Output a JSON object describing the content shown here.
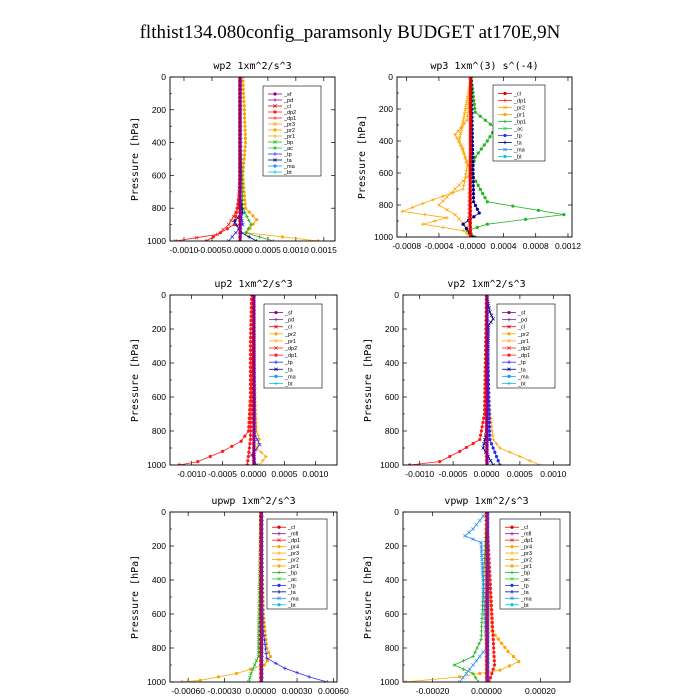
{
  "title": "flthist134.080config_paramsonly  BUDGET at170E,9N",
  "ylabel": "Pressure [hPa]",
  "colors": {
    "_sf": "#8b008b",
    "_pd": "#7b1fa2",
    "_mfl": "#7b1fa2",
    "_cl": "#e00000",
    "_dp": "#ff1a1a",
    "_pr": "#ffa500",
    "_bp": "#22b422",
    "_ac": "#32cd32",
    "_tp": "#2a2aff",
    "_ta": "#00008b",
    "_ma": "#1e90ff",
    "_bt": "#00c8d8"
  },
  "chart_data": [
    {
      "name": "wp2",
      "type": "line",
      "title": "wp2  1xm^2/s^3",
      "ylabel": "Pressure [hPa]",
      "ylim": [
        1000,
        0
      ],
      "yticks": [
        "0",
        "200",
        "400",
        "600",
        "800",
        "1000"
      ],
      "xlim": [
        -0.00125,
        0.0017
      ],
      "xticks": [
        {
          "v": -0.001,
          "t": "-0.0010"
        },
        {
          "v": -0.0005,
          "t": "-0.0005"
        },
        {
          "v": 0.0,
          "t": "0.0000"
        },
        {
          "v": 0.0005,
          "t": "0.0005"
        },
        {
          "v": 0.001,
          "t": "0.0010"
        },
        {
          "v": 0.0015,
          "t": "0.0015"
        }
      ],
      "legend": [
        "_sf",
        "_pd",
        "_cl",
        "_dp2",
        "_dp1",
        "_pr3",
        "_pr2",
        "_pr1",
        "_bp",
        "_ac",
        "_tp",
        "_ta",
        "_ma",
        "_bt"
      ],
      "series": [
        {
          "name": "_pr1",
          "y": [
            0,
            200,
            400,
            600,
            800,
            870,
            950,
            1000
          ],
          "x": [
            5e-05,
            8e-05,
            0.0001,
            5e-05,
            0.0001,
            0.0003,
            0.00012,
            0.0014
          ]
        },
        {
          "name": "_bp",
          "y": [
            0,
            300,
            500,
            800,
            900,
            950,
            1000
          ],
          "x": [
            0,
            0,
            3e-05,
            5e-05,
            0.0002,
            0.0001,
            0.0006
          ]
        },
        {
          "name": "_dp1",
          "y": [
            0,
            600,
            800,
            900,
            960,
            1000
          ],
          "x": [
            0,
            0,
            -3e-05,
            -0.0002,
            -0.0004,
            -0.00115
          ]
        },
        {
          "name": "_dp2",
          "y": [
            0,
            700,
            900,
            1000
          ],
          "x": [
            0,
            0,
            -0.0001,
            -0.0006
          ]
        },
        {
          "name": "_ta",
          "y": [
            0,
            700,
            830,
            880,
            950,
            1000
          ],
          "x": [
            0,
            0,
            5e-05,
            -0.0001,
            3e-05,
            0.0003
          ]
        },
        {
          "name": "_tp",
          "y": [
            0,
            800,
            900,
            1000
          ],
          "x": [
            0,
            0,
            5e-05,
            -0.0002
          ]
        },
        {
          "name": "_cl",
          "y": [
            0,
            1000
          ],
          "x": [
            0,
            0
          ]
        },
        {
          "name": "_sf",
          "y": [
            0,
            1000
          ],
          "x": [
            1e-05,
            1e-05
          ]
        }
      ]
    },
    {
      "name": "wp3",
      "type": "line",
      "title": "wp3  1xm^(3) s^(-4)",
      "ylabel": "Pressure [hPa]",
      "ylim": [
        1000,
        0
      ],
      "yticks": [
        "0",
        "200",
        "400",
        "600",
        "800",
        "1000"
      ],
      "xlim": [
        -0.00092,
        0.00125
      ],
      "xticks": [
        {
          "v": -0.0008,
          "t": "-0.0008"
        },
        {
          "v": -0.0004,
          "t": "-0.0004"
        },
        {
          "v": 0.0,
          "t": "-0.0000"
        },
        {
          "v": 0.0004,
          "t": "0.0004"
        },
        {
          "v": 0.0008,
          "t": "0.0008"
        },
        {
          "v": 0.0012,
          "t": "0.0012"
        }
      ],
      "legend": [
        "_cl",
        "_dp1",
        "_pr2",
        "_pr1",
        "_bp1",
        "_ac",
        "_tp",
        "_ta",
        "_ma",
        "_bt"
      ],
      "series": [
        {
          "name": "_bp1",
          "y": [
            0,
            220,
            320,
            400,
            500,
            600,
            780,
            860,
            920,
            960,
            1000
          ],
          "x": [
            0,
            5e-05,
            0.0003,
            0.0002,
            5e-05,
            0,
            0.0002,
            0.00115,
            0.0002,
            -5e-05,
            5e-05
          ]
        },
        {
          "name": "_pr2",
          "y": [
            0,
            270,
            360,
            450,
            560,
            700,
            790,
            840,
            880,
            920,
            960,
            1000
          ],
          "x": [
            0,
            -5e-05,
            -0.0002,
            -0.0001,
            -5e-05,
            -0.0001,
            -0.0006,
            -0.00085,
            -0.0003,
            -0.0006,
            -0.0001,
            0
          ]
        },
        {
          "name": "_pr1",
          "y": [
            0,
            280,
            400,
            600,
            800,
            860,
            940,
            1000
          ],
          "x": [
            0,
            -0.0001,
            -0.00015,
            0,
            -0.0004,
            -0.0002,
            -5e-05,
            0
          ]
        },
        {
          "name": "_ta",
          "y": [
            0,
            780,
            850,
            920,
            1000
          ],
          "x": [
            0,
            3e-05,
            0.0001,
            -0.0001,
            2e-05
          ]
        },
        {
          "name": "_dp1",
          "y": [
            0,
            900,
            1000
          ],
          "x": [
            0,
            -3e-05,
            0
          ]
        },
        {
          "name": "_cl",
          "y": [
            0,
            1000
          ],
          "x": [
            -1e-05,
            -1e-05
          ]
        }
      ]
    },
    {
      "name": "up2",
      "type": "line",
      "title": "up2  1xm^2/s^3",
      "ylabel": "Pressure [hPa]",
      "ylim": [
        1000,
        0
      ],
      "yticks": [
        "0",
        "200",
        "400",
        "600",
        "800",
        "1000"
      ],
      "xlim": [
        -0.00135,
        0.00135
      ],
      "xticks": [
        {
          "v": -0.001,
          "t": "-0.0010"
        },
        {
          "v": -0.0005,
          "t": "-0.0005"
        },
        {
          "v": 0.0,
          "t": "0.0000"
        },
        {
          "v": 0.0005,
          "t": "0.0005"
        },
        {
          "v": 0.001,
          "t": "0.0010"
        }
      ],
      "legend": [
        "_sf",
        "_pd",
        "_cl",
        "_pr2",
        "_pr1",
        "_dp2",
        "_dp1",
        "_tp",
        "_ta",
        "_ma",
        "_bt"
      ],
      "series": [
        {
          "name": "_dp1",
          "y": [
            0,
            300,
            600,
            800,
            860,
            920,
            980,
            1000
          ],
          "x": [
            -3e-05,
            -5e-05,
            -5e-05,
            -8e-05,
            -0.0002,
            -0.0005,
            -0.0009,
            -0.0012
          ]
        },
        {
          "name": "_pr2",
          "y": [
            0,
            500,
            800,
            850,
            900,
            950,
            1000
          ],
          "x": [
            0,
            2e-05,
            5e-05,
            0.0001,
            5e-05,
            0.0002,
            0.0001
          ]
        },
        {
          "name": "_tp",
          "y": [
            0,
            820,
            880,
            940,
            1000
          ],
          "x": [
            0,
            2e-05,
            0.0001,
            -3e-05,
            5e-05
          ]
        },
        {
          "name": "_dp2",
          "y": [
            0,
            850,
            1000
          ],
          "x": [
            0,
            -5e-05,
            -0.0001
          ]
        },
        {
          "name": "_cl",
          "y": [
            0,
            1000
          ],
          "x": [
            0,
            0
          ]
        },
        {
          "name": "_sf",
          "y": [
            0,
            1000
          ],
          "x": [
            1e-05,
            1e-05
          ]
        }
      ]
    },
    {
      "name": "vp2",
      "type": "line",
      "title": "vp2  1xm^2/s^3",
      "ylabel": "Pressure [hPa]",
      "ylim": [
        1000,
        0
      ],
      "yticks": [
        "0",
        "200",
        "400",
        "600",
        "800",
        "1000"
      ],
      "xlim": [
        -0.00125,
        0.00125
      ],
      "xticks": [
        {
          "v": -0.001,
          "t": "-0.0010"
        },
        {
          "v": -0.0005,
          "t": "-0.0005"
        },
        {
          "v": 0.0,
          "t": "0.0000"
        },
        {
          "v": 0.0005,
          "t": "0.0005"
        },
        {
          "v": 0.001,
          "t": "0.0010"
        }
      ],
      "legend": [
        "_sf",
        "_pd",
        "_cl",
        "_pr2",
        "_pr1",
        "_dp2",
        "_dp1",
        "_tp",
        "_ta",
        "_ma",
        "_bt"
      ],
      "series": [
        {
          "name": "_dp1",
          "y": [
            0,
            700,
            850,
            920,
            980,
            1000
          ],
          "x": [
            0,
            -3e-05,
            -0.0001,
            -0.0004,
            -0.0007,
            -0.00115
          ]
        },
        {
          "name": "_pr2",
          "y": [
            0,
            600,
            850,
            900,
            950,
            1000
          ],
          "x": [
            0,
            3e-05,
            0.0001,
            0.0002,
            0.0005,
            0.0008
          ]
        },
        {
          "name": "_ta",
          "y": [
            0,
            100,
            140,
            180,
            800,
            900,
            1000
          ],
          "x": [
            0,
            5e-05,
            0.0001,
            3e-05,
            0,
            -5e-05,
            0.0001
          ]
        },
        {
          "name": "_tp",
          "y": [
            0,
            850,
            1000
          ],
          "x": [
            0,
            5e-05,
            0.0002
          ]
        },
        {
          "name": "_cl",
          "y": [
            0,
            1000
          ],
          "x": [
            0,
            0
          ]
        },
        {
          "name": "_sf",
          "y": [
            0,
            1000
          ],
          "x": [
            1e-05,
            1e-05
          ]
        }
      ]
    },
    {
      "name": "upwp",
      "type": "line",
      "title": "upwp  1xm^2/s^3",
      "ylabel": "Pressure [hPa]",
      "ylim": [
        1000,
        0
      ],
      "yticks": [
        "0",
        "200",
        "400",
        "600",
        "800",
        "1000"
      ],
      "xlim": [
        -0.00075,
        0.00063
      ],
      "xticks": [
        {
          "v": -0.0006,
          "t": "-0.00060"
        },
        {
          "v": -0.0003,
          "t": "-0.00030"
        },
        {
          "v": 0.0,
          "t": "0.00000"
        },
        {
          "v": 0.0003,
          "t": "0.00030"
        },
        {
          "v": 0.0006,
          "t": "0.00060"
        }
      ],
      "legend": [
        "_cl",
        "_mfl",
        "_dp1",
        "_pr4",
        "_pr3",
        "_pr2",
        "_pr1",
        "_bp",
        "_ac",
        "_tp",
        "_ta",
        "_ma",
        "_bt"
      ],
      "series": [
        {
          "name": "_pr2",
          "y": [
            0,
            600,
            800,
            850,
            900,
            950,
            990,
            1000
          ],
          "x": [
            0,
            2e-05,
            5e-05,
            8e-05,
            3e-05,
            -0.0002,
            -0.0005,
            -0.00065
          ]
        },
        {
          "name": "_tp",
          "y": [
            0,
            700,
            860,
            920,
            970,
            1000
          ],
          "x": [
            0,
            2e-05,
            5e-05,
            0.0002,
            0.0004,
            0.00055
          ]
        },
        {
          "name": "_bp",
          "y": [
            0,
            850,
            950,
            1000
          ],
          "x": [
            0,
            -2e-05,
            -8e-05,
            -0.0001
          ]
        },
        {
          "name": "_cl",
          "y": [
            0,
            1000
          ],
          "x": [
            0,
            0
          ]
        },
        {
          "name": "_mfl",
          "y": [
            0,
            1000
          ],
          "x": [
            1e-05,
            1e-05
          ]
        }
      ]
    },
    {
      "name": "vpwp",
      "type": "line",
      "title": "vpwp  1xm^2/s^3",
      "ylabel": "Pressure [hPa]",
      "ylim": [
        1000,
        0
      ],
      "yticks": [
        "0",
        "200",
        "400",
        "600",
        "800",
        "1000"
      ],
      "xlim": [
        -0.00031,
        0.00031
      ],
      "xticks": [
        {
          "v": -0.0002,
          "t": "-0.00020"
        },
        {
          "v": 0.0,
          "t": "0.00000"
        },
        {
          "v": 0.0002,
          "t": "0.00020"
        }
      ],
      "legend": [
        "_cl",
        "_mfl",
        "_dp1",
        "_pr4",
        "_pr3",
        "_pr2",
        "_pr1",
        "_bp",
        "_ac",
        "_tp",
        "_ta",
        "_ma",
        "_bt"
      ],
      "series": [
        {
          "name": "_pr2",
          "y": [
            0,
            700,
            820,
            880,
            930,
            970,
            1000
          ],
          "x": [
            0,
            2e-05,
            8e-05,
            0.00012,
            5e-05,
            -0.0001,
            -0.0003
          ]
        },
        {
          "name": "_bp",
          "y": [
            0,
            750,
            850,
            900,
            950,
            1000
          ],
          "x": [
            0,
            -2e-05,
            -5e-05,
            -0.00012,
            -5e-05,
            -3e-05
          ]
        },
        {
          "name": "_ma",
          "y": [
            0,
            100,
            140,
            180,
            800,
            1000
          ],
          "x": [
            0,
            -5e-05,
            -8e-05,
            -2e-05,
            0,
            -0.0001
          ]
        },
        {
          "name": "_dp1",
          "y": [
            0,
            900,
            1000
          ],
          "x": [
            0,
            3e-05,
            1e-05
          ]
        },
        {
          "name": "_cl",
          "y": [
            0,
            1000
          ],
          "x": [
            0,
            0
          ]
        },
        {
          "name": "_mfl",
          "y": [
            0,
            1000
          ],
          "x": [
            5e-06,
            5e-06
          ]
        }
      ]
    }
  ]
}
